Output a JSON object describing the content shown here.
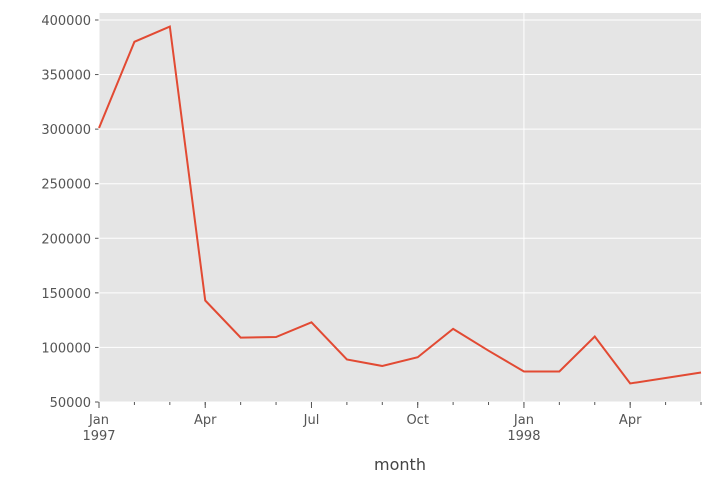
{
  "chart_data": {
    "type": "line",
    "x_label": "month",
    "x": [
      "1997-01",
      "1997-02",
      "1997-03",
      "1997-04",
      "1997-05",
      "1997-06",
      "1997-07",
      "1997-08",
      "1997-09",
      "1997-10",
      "1997-11",
      "1997-12",
      "1998-01",
      "1998-02",
      "1998-03",
      "1998-04",
      "1998-05",
      "1998-06"
    ],
    "series": [
      {
        "color": "#e24a33",
        "values": [
          301000,
          380000,
          394000,
          143000,
          109000,
          109500,
          123000,
          89000,
          83000,
          91000,
          117000,
          97000,
          78000,
          78000,
          110000,
          67000,
          72000,
          77000
        ]
      }
    ],
    "ylim": [
      50000,
      406400
    ],
    "yticks": [
      50000,
      100000,
      150000,
      200000,
      250000,
      300000,
      350000,
      400000
    ],
    "xticks": [
      {
        "value": "1997-01",
        "label": "Jan"
      },
      {
        "value": "1997-04",
        "label": "Apr"
      },
      {
        "value": "1997-07",
        "label": "Jul"
      },
      {
        "value": "1997-10",
        "label": "Oct"
      },
      {
        "value": "1998-01",
        "label": "Jan"
      },
      {
        "value": "1998-04",
        "label": "Apr"
      }
    ],
    "xticks_year": [
      {
        "value": "1997-01",
        "label": "1997"
      },
      {
        "value": "1998-01",
        "label": "1998"
      }
    ],
    "grid": true,
    "background": "#e5e5e5"
  }
}
